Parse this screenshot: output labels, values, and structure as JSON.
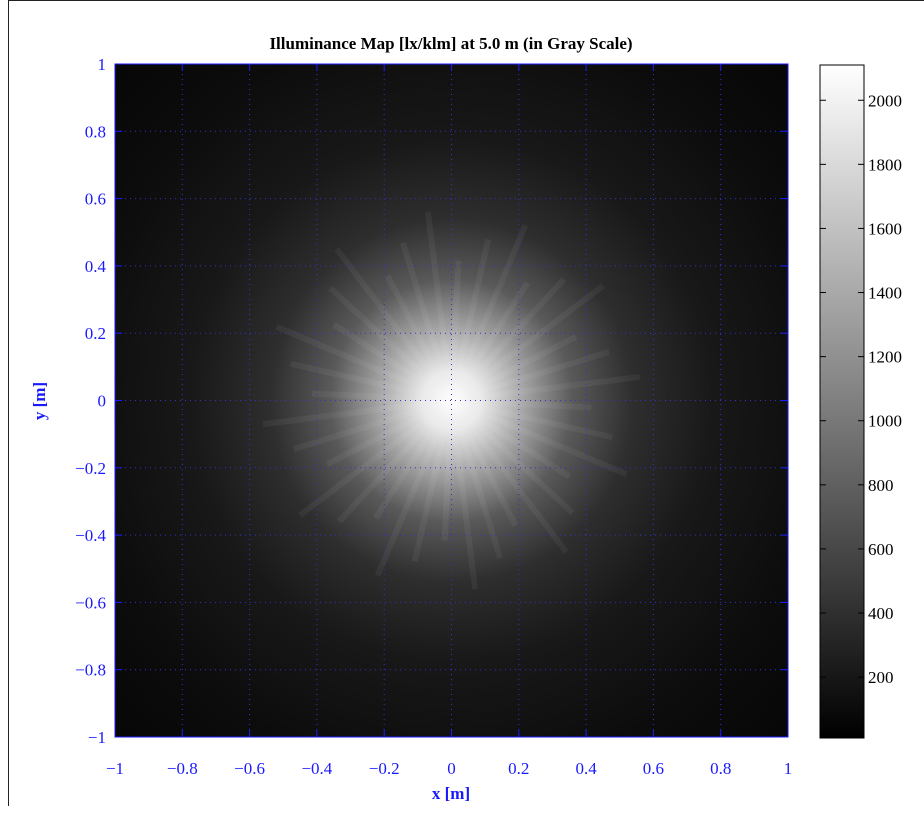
{
  "chart_data": {
    "type": "heatmap",
    "title": "Illuminance Map [lx/klm] at 5.0 m (in Gray Scale)",
    "xlabel": "x [m]",
    "ylabel": "y [m]",
    "xlim": [
      -1,
      1
    ],
    "ylim": [
      -1,
      1
    ],
    "x_ticks": [
      "−1",
      "−0.8",
      "−0.6",
      "−0.4",
      "−0.2",
      "0",
      "0.2",
      "0.4",
      "0.6",
      "0.8",
      "1"
    ],
    "y_ticks": [
      "1",
      "0.8",
      "0.6",
      "0.4",
      "0.2",
      "0",
      "−0.2",
      "−0.4",
      "−0.6",
      "−0.8",
      "−1"
    ],
    "x_tick_values": [
      -1,
      -0.8,
      -0.6,
      -0.4,
      -0.2,
      0,
      0.2,
      0.4,
      0.6,
      0.8,
      1
    ],
    "y_tick_values": [
      1,
      0.8,
      0.6,
      0.4,
      0.2,
      0,
      -0.2,
      -0.4,
      -0.6,
      -0.8,
      -1
    ],
    "grid": true,
    "colormap": "gray",
    "colorbar": {
      "range": [
        10,
        2110
      ],
      "tick_labels": [
        "2000",
        "1800",
        "1600",
        "1400",
        "1200",
        "1000",
        "800",
        "600",
        "400",
        "200"
      ],
      "tick_values": [
        2000,
        1800,
        1600,
        1400,
        1200,
        1000,
        800,
        600,
        400,
        200
      ]
    },
    "peak": {
      "x": 0,
      "y": 0,
      "value": 2080
    },
    "distribution": "radially symmetric peak at origin decaying to ~50 lx/klm at the edges",
    "colors": {
      "axis": "#1a1aff",
      "grid": "#3333cc"
    }
  }
}
